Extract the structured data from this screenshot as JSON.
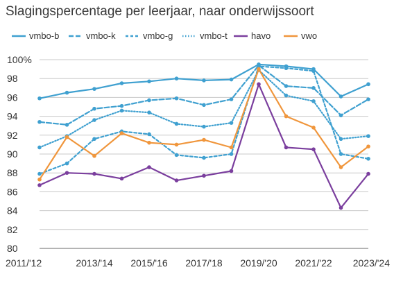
{
  "chart_data": {
    "type": "line",
    "title": "Slagingspercentage per leerjaar, naar onderwijssoort",
    "xlabel": "",
    "ylabel": "",
    "x": [
      "2011/'12",
      "2012/'13",
      "2013/'14",
      "2014/'15",
      "2015/'16",
      "2016/'17",
      "2017/'18",
      "2018/'19",
      "2019/'20",
      "2020/'21",
      "2021/'22",
      "2022/'23",
      "2023/'24"
    ],
    "x_tick_labels": [
      "2011/'12",
      "2013/'14",
      "2015/'16",
      "2017/'18",
      "2019/'20",
      "2021/'22",
      "2023/'24"
    ],
    "x_tick_indices": [
      0,
      2,
      4,
      6,
      8,
      10,
      12
    ],
    "y_tick_labels": [
      "100%",
      "98",
      "96",
      "94",
      "92",
      "90",
      "88",
      "86",
      "84",
      "82",
      "80"
    ],
    "y_tick_values": [
      100,
      98,
      96,
      94,
      92,
      90,
      88,
      86,
      84,
      82,
      80
    ],
    "ylim": [
      80,
      100
    ],
    "grid": true,
    "legend": "top",
    "series": [
      {
        "name": "vmbo-b",
        "color": "#3fa0d0",
        "dash": "solid",
        "values": [
          95.9,
          96.5,
          96.9,
          97.5,
          97.7,
          98.0,
          97.8,
          97.9,
          99.5,
          99.3,
          99.0,
          96.1,
          97.4
        ]
      },
      {
        "name": "vmbo-k",
        "color": "#3fa0d0",
        "dash": "dash",
        "values": [
          93.4,
          93.1,
          94.8,
          95.1,
          95.7,
          95.9,
          95.2,
          95.8,
          99.4,
          97.2,
          97.0,
          94.1,
          95.8
        ]
      },
      {
        "name": "vmbo-g",
        "color": "#3fa0d0",
        "dash": "shortdash",
        "values": [
          87.9,
          89.0,
          91.6,
          92.4,
          92.1,
          89.9,
          89.6,
          90.0,
          99.3,
          99.1,
          98.8,
          90.0,
          89.5
        ]
      },
      {
        "name": "vmbo-t",
        "color": "#3fa0d0",
        "dash": "dot",
        "values": [
          90.7,
          91.9,
          93.6,
          94.6,
          94.4,
          93.2,
          92.9,
          93.3,
          98.9,
          96.2,
          95.6,
          91.6,
          91.9
        ]
      },
      {
        "name": "havo",
        "color": "#7b3f9e",
        "dash": "solid",
        "values": [
          86.7,
          88.0,
          87.9,
          87.4,
          88.6,
          87.2,
          87.7,
          88.2,
          97.4,
          90.7,
          90.5,
          84.3,
          87.9
        ]
      },
      {
        "name": "vwo",
        "color": "#f0963c",
        "dash": "solid",
        "values": [
          87.3,
          91.8,
          89.8,
          92.2,
          91.2,
          91.0,
          91.5,
          90.7,
          99.0,
          94.0,
          92.8,
          88.6,
          90.8
        ]
      }
    ]
  }
}
